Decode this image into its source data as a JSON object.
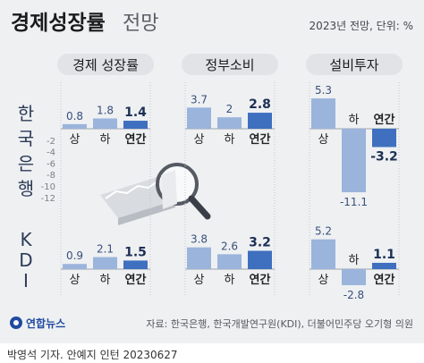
{
  "header": {
    "title_bold": "경제성장률",
    "title_light": "전망",
    "note": "2023년 전망, 단위: %"
  },
  "row_labels": {
    "bok": [
      "한",
      "국",
      "은",
      "행"
    ],
    "kdi": [
      "K",
      "D",
      "I"
    ]
  },
  "source": "자료: 한국은행, 한국개발연구원(KDI), 더불어민주당 오기형 의원",
  "logo": "연합뉴스",
  "credit": "박영석 기자. 안예지 인턴  20230627",
  "colors": {
    "light_bar": "#9ab4dc",
    "dark_bar": "#3f6fbf",
    "background": "#eef0f2",
    "pill": "#e1e3e6",
    "gridline": "#c5c8cd"
  },
  "chart_data": [
    {
      "type": "bar",
      "title": "경제 성장률",
      "categories": [
        "상",
        "하",
        "연간"
      ],
      "series": [
        {
          "name": "한국은행",
          "values": [
            0.8,
            1.8,
            1.4
          ]
        },
        {
          "name": "KDI",
          "values": [
            0.9,
            2.1,
            1.5
          ]
        }
      ],
      "y_ticks": [
        "-2",
        "-4",
        "-6",
        "-8",
        "-10",
        "-12"
      ]
    },
    {
      "type": "bar",
      "title": "정부소비",
      "categories": [
        "상",
        "하",
        "연간"
      ],
      "series": [
        {
          "name": "한국은행",
          "values": [
            3.7,
            2.0,
            2.8
          ]
        },
        {
          "name": "KDI",
          "values": [
            3.8,
            2.6,
            3.2
          ]
        }
      ]
    },
    {
      "type": "bar",
      "title": "설비투자",
      "categories": [
        "상",
        "하",
        "연간"
      ],
      "series": [
        {
          "name": "한국은행",
          "values": [
            5.3,
            -11.1,
            -3.2
          ]
        },
        {
          "name": "KDI",
          "values": [
            5.2,
            -2.8,
            1.1
          ]
        }
      ]
    }
  ]
}
